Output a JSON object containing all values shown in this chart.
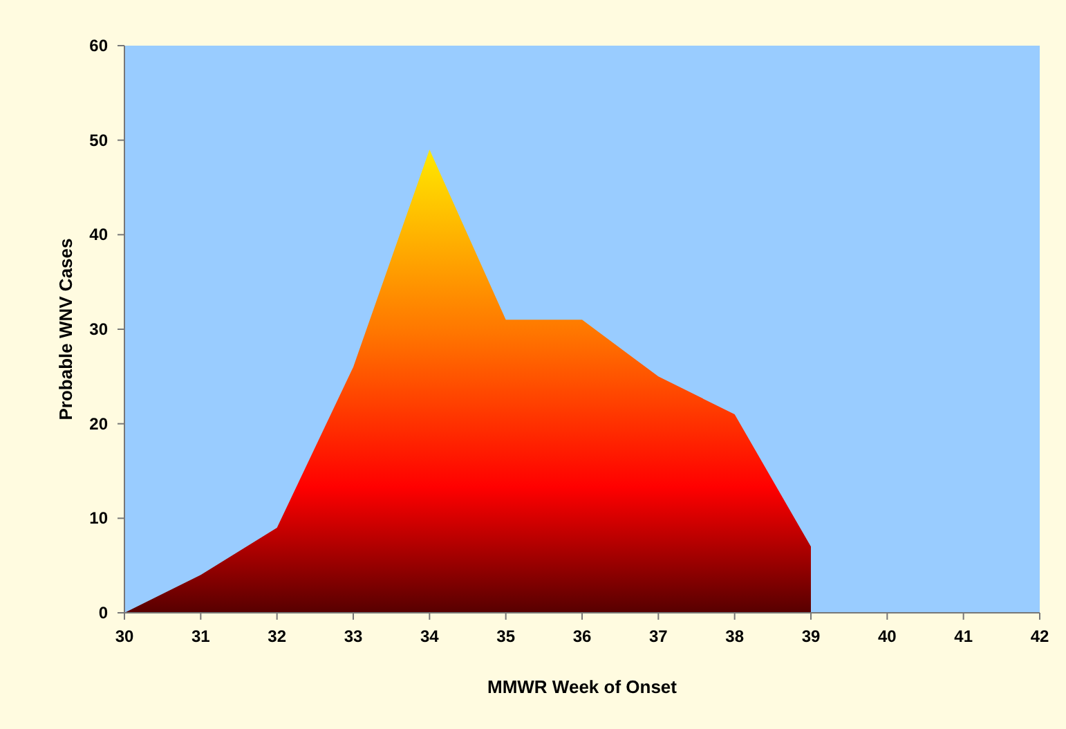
{
  "chart_data": {
    "type": "area",
    "xlabel": "MMWR Week of Onset",
    "ylabel": "Probable WNV Cases",
    "x": [
      30,
      31,
      32,
      33,
      34,
      35,
      36,
      37,
      38,
      39
    ],
    "series": [
      {
        "color": "#ff0000",
        "values": [
          0,
          4,
          9,
          26,
          49,
          31,
          31,
          25,
          21,
          7
        ]
      }
    ],
    "xlim": [
      30,
      42
    ],
    "xticks": [
      30,
      31,
      32,
      33,
      34,
      35,
      36,
      37,
      38,
      39,
      40,
      41,
      42
    ],
    "ylim": [
      0,
      60
    ],
    "yticks": [
      0,
      10,
      20,
      30,
      40,
      50,
      60
    ],
    "grid": false
  }
}
